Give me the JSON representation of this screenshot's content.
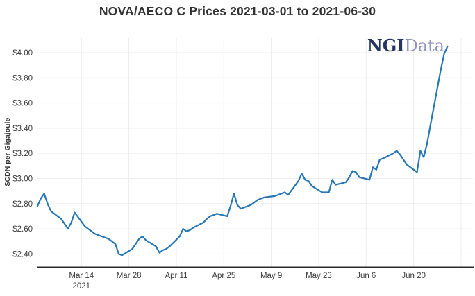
{
  "page_title": "NOVA/AECO C Prices 2021-03-01 to 2021-06-30",
  "logo": {
    "primary": "NGI",
    "secondary": "Data",
    "primary_color": "#24365f",
    "secondary_color": "#9094c2"
  },
  "chart_data": {
    "type": "line",
    "title": "NOVA/AECO C Prices 2021-03-01 to 2021-06-30",
    "xlabel": "",
    "ylabel": "$CDN per Gigajoule",
    "date_range": [
      "2021-03-01",
      "2021-06-30"
    ],
    "grid": true,
    "legend_position": "none",
    "line_color": "#2577b5",
    "axis_line_color": "#2b2b2b",
    "grid_color": "#ededed",
    "ylim": [
      2.4,
      4.0
    ],
    "ytick_labels": [
      "$2.40",
      "$2.60",
      "$2.80",
      "$3.00",
      "$3.20",
      "$3.40",
      "$3.60",
      "$3.80",
      "$4.00"
    ],
    "ytick_values": [
      2.4,
      2.6,
      2.8,
      3.0,
      3.2,
      3.4,
      3.6,
      3.8,
      4.0
    ],
    "xtick_labels": [
      "Mar 14",
      "Mar 28",
      "Apr 11",
      "Apr 25",
      "May 9",
      "May 23",
      "Jun 6",
      "Jun 20"
    ],
    "unlabeled_xticks": [
      "Jul 4"
    ],
    "year_label": "2021",
    "year_label_anchor": "Mar 14",
    "series": [
      {
        "name": "NOVA/AECO C",
        "dates": [
          "Mar 1",
          "Mar 2",
          "Mar 3",
          "Mar 4",
          "Mar 5",
          "Mar 8",
          "Mar 9",
          "Mar 10",
          "Mar 11",
          "Mar 12",
          "Mar 15",
          "Mar 16",
          "Mar 17",
          "Mar 18",
          "Mar 19",
          "Mar 22",
          "Mar 23",
          "Mar 24",
          "Mar 25",
          "Mar 26",
          "Mar 29",
          "Mar 30",
          "Mar 31",
          "Apr 1",
          "Apr 2",
          "Apr 5",
          "Apr 6",
          "Apr 7",
          "Apr 8",
          "Apr 9",
          "Apr 12",
          "Apr 13",
          "Apr 14",
          "Apr 15",
          "Apr 16",
          "Apr 19",
          "Apr 20",
          "Apr 21",
          "Apr 22",
          "Apr 23",
          "Apr 26",
          "Apr 27",
          "Apr 28",
          "Apr 29",
          "Apr 30",
          "May 3",
          "May 4",
          "May 5",
          "May 6",
          "May 7",
          "May 10",
          "May 11",
          "May 12",
          "May 13",
          "May 14",
          "May 17",
          "May 18",
          "May 19",
          "May 20",
          "May 21",
          "May 24",
          "May 25",
          "May 26",
          "May 27",
          "May 28",
          "May 31",
          "Jun 1",
          "Jun 2",
          "Jun 3",
          "Jun 4",
          "Jun 7",
          "Jun 8",
          "Jun 9",
          "Jun 10",
          "Jun 11",
          "Jun 14",
          "Jun 15",
          "Jun 16",
          "Jun 17",
          "Jun 18",
          "Jun 21",
          "Jun 22",
          "Jun 23",
          "Jun 24",
          "Jun 25",
          "Jun 28",
          "Jun 29",
          "Jun 30"
        ],
        "values": [
          2.78,
          2.84,
          2.88,
          2.8,
          2.74,
          2.68,
          2.64,
          2.6,
          2.65,
          2.73,
          2.62,
          2.6,
          2.58,
          2.56,
          2.55,
          2.52,
          2.5,
          2.48,
          2.4,
          2.39,
          2.44,
          2.48,
          2.52,
          2.54,
          2.51,
          2.46,
          2.41,
          2.43,
          2.44,
          2.46,
          2.54,
          2.6,
          2.58,
          2.59,
          2.61,
          2.65,
          2.68,
          2.7,
          2.71,
          2.72,
          2.7,
          2.78,
          2.88,
          2.79,
          2.76,
          2.79,
          2.81,
          2.83,
          2.84,
          2.85,
          2.86,
          2.87,
          2.88,
          2.89,
          2.87,
          2.98,
          3.04,
          2.99,
          2.98,
          2.94,
          2.89,
          2.89,
          2.89,
          2.99,
          2.95,
          2.97,
          3.01,
          3.06,
          3.05,
          3.01,
          2.99,
          3.09,
          3.07,
          3.15,
          3.16,
          3.2,
          3.22,
          3.19,
          3.15,
          3.11,
          3.05,
          3.22,
          3.17,
          3.28,
          3.43,
          3.86,
          3.99,
          4.05
        ]
      }
    ]
  }
}
